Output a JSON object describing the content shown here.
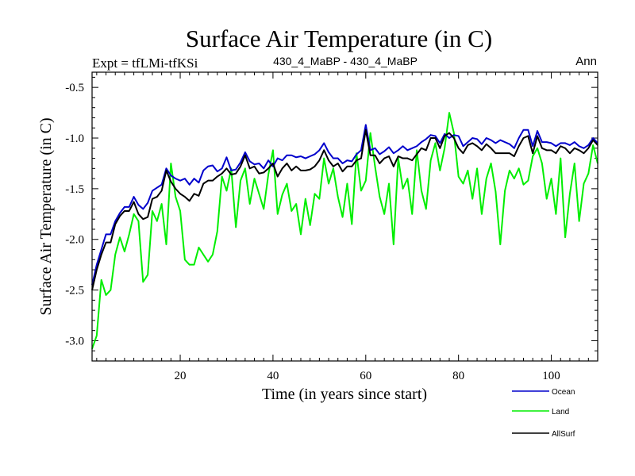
{
  "chart_data": {
    "type": "line",
    "title": "Surface Air Temperature (in C)",
    "left_label": "Expt = tfLMi-tfKSi",
    "center_label": "430_4_MaBP - 430_4_MaBP",
    "right_label": "Ann",
    "xlabel": "Time (in years since start)",
    "ylabel": "Surface Air Temperature (in C)",
    "xlim": [
      1,
      110
    ],
    "ylim": [
      -3.2,
      -0.35
    ],
    "xticks": [
      20,
      40,
      60,
      80,
      100
    ],
    "xtick_labels": [
      "20",
      "40",
      "60",
      "80",
      "100"
    ],
    "yticks": [
      -3.0,
      -2.5,
      -2.0,
      -1.5,
      -1.0,
      -0.5
    ],
    "ytick_labels": [
      "-3.0",
      "-2.5",
      "-2.0",
      "-1.5",
      "-1.0",
      "-0.5"
    ],
    "series": [
      {
        "name": "Ocean",
        "color": "#0000cc",
        "values": [
          -2.45,
          -2.25,
          -2.1,
          -1.95,
          -1.95,
          -1.82,
          -1.74,
          -1.68,
          -1.68,
          -1.58,
          -1.66,
          -1.7,
          -1.64,
          -1.52,
          -1.49,
          -1.46,
          -1.3,
          -1.37,
          -1.4,
          -1.42,
          -1.4,
          -1.46,
          -1.4,
          -1.44,
          -1.32,
          -1.28,
          -1.27,
          -1.33,
          -1.3,
          -1.19,
          -1.32,
          -1.31,
          -1.24,
          -1.14,
          -1.23,
          -1.26,
          -1.25,
          -1.3,
          -1.22,
          -1.28,
          -1.2,
          -1.22,
          -1.17,
          -1.17,
          -1.19,
          -1.18,
          -1.2,
          -1.18,
          -1.16,
          -1.12,
          -1.05,
          -1.14,
          -1.2,
          -1.2,
          -1.25,
          -1.22,
          -1.23,
          -1.16,
          -1.12,
          -0.87,
          -1.12,
          -1.1,
          -1.16,
          -1.13,
          -1.09,
          -1.15,
          -1.12,
          -1.08,
          -1.12,
          -1.1,
          -1.08,
          -1.04,
          -1.01,
          -0.97,
          -0.98,
          -1.05,
          -0.96,
          -1.0,
          -0.97,
          -0.98,
          -1.08,
          -1.04,
          -1.0,
          -1.01,
          -1.06,
          -1.0,
          -1.02,
          -1.05,
          -1.02,
          -1.04,
          -1.06,
          -1.1,
          -1.0,
          -0.92,
          -0.92,
          -1.08,
          -0.93,
          -1.04,
          -1.04,
          -1.05,
          -1.08,
          -1.05,
          -1.05,
          -1.07,
          -1.04,
          -1.08,
          -1.1,
          -1.07,
          -1.0,
          -1.05
        ]
      },
      {
        "name": "Land",
        "color": "#00ee00",
        "values": [
          -3.08,
          -2.95,
          -2.4,
          -2.55,
          -2.5,
          -2.15,
          -1.98,
          -2.12,
          -1.95,
          -1.75,
          -1.82,
          -2.42,
          -2.35,
          -1.72,
          -1.82,
          -1.65,
          -2.05,
          -1.25,
          -1.58,
          -1.72,
          -2.2,
          -2.25,
          -2.25,
          -2.08,
          -2.15,
          -2.22,
          -2.15,
          -1.92,
          -1.38,
          -1.52,
          -1.3,
          -1.88,
          -1.42,
          -1.3,
          -1.65,
          -1.4,
          -1.55,
          -1.7,
          -1.36,
          -1.12,
          -1.75,
          -1.56,
          -1.45,
          -1.72,
          -1.65,
          -1.95,
          -1.6,
          -1.86,
          -1.55,
          -1.6,
          -1.2,
          -1.45,
          -1.3,
          -1.58,
          -1.78,
          -1.45,
          -1.85,
          -1.15,
          -1.52,
          -1.42,
          -0.95,
          -1.28,
          -1.58,
          -1.75,
          -1.45,
          -2.05,
          -1.2,
          -1.5,
          -1.4,
          -1.75,
          -1.12,
          -1.52,
          -1.7,
          -1.22,
          -1.05,
          -1.32,
          -1.1,
          -0.75,
          -0.95,
          -1.38,
          -1.45,
          -1.32,
          -1.6,
          -1.3,
          -1.75,
          -1.4,
          -1.25,
          -1.53,
          -2.05,
          -1.52,
          -1.32,
          -1.4,
          -1.3,
          -1.46,
          -1.42,
          -1.18,
          -1.1,
          -1.25,
          -1.6,
          -1.4,
          -1.75,
          -1.2,
          -1.98,
          -1.55,
          -1.25,
          -1.82,
          -1.45,
          -1.35,
          -1.07,
          -1.25
        ]
      },
      {
        "name": "AllSurf",
        "color": "#000000",
        "values": [
          -2.5,
          -2.3,
          -2.15,
          -2.03,
          -2.03,
          -1.85,
          -1.77,
          -1.72,
          -1.72,
          -1.63,
          -1.75,
          -1.8,
          -1.78,
          -1.6,
          -1.58,
          -1.52,
          -1.32,
          -1.43,
          -1.5,
          -1.55,
          -1.58,
          -1.62,
          -1.55,
          -1.57,
          -1.45,
          -1.42,
          -1.42,
          -1.38,
          -1.35,
          -1.3,
          -1.36,
          -1.35,
          -1.28,
          -1.17,
          -1.3,
          -1.28,
          -1.35,
          -1.34,
          -1.3,
          -1.25,
          -1.38,
          -1.3,
          -1.25,
          -1.32,
          -1.28,
          -1.32,
          -1.32,
          -1.31,
          -1.28,
          -1.22,
          -1.12,
          -1.22,
          -1.28,
          -1.25,
          -1.33,
          -1.28,
          -1.28,
          -1.22,
          -1.2,
          -0.92,
          -1.17,
          -1.17,
          -1.25,
          -1.2,
          -1.18,
          -1.28,
          -1.18,
          -1.2,
          -1.2,
          -1.22,
          -1.16,
          -1.1,
          -1.12,
          -1.0,
          -1.0,
          -1.1,
          -0.98,
          -0.95,
          -1.0,
          -1.1,
          -1.15,
          -1.07,
          -1.05,
          -1.08,
          -1.12,
          -1.06,
          -1.1,
          -1.15,
          -1.15,
          -1.15,
          -1.15,
          -1.18,
          -1.08,
          -1.0,
          -0.98,
          -1.15,
          -0.98,
          -1.1,
          -1.12,
          -1.12,
          -1.15,
          -1.08,
          -1.1,
          -1.15,
          -1.1,
          -1.12,
          -1.15,
          -1.1,
          -1.02,
          -1.07
        ]
      }
    ]
  }
}
